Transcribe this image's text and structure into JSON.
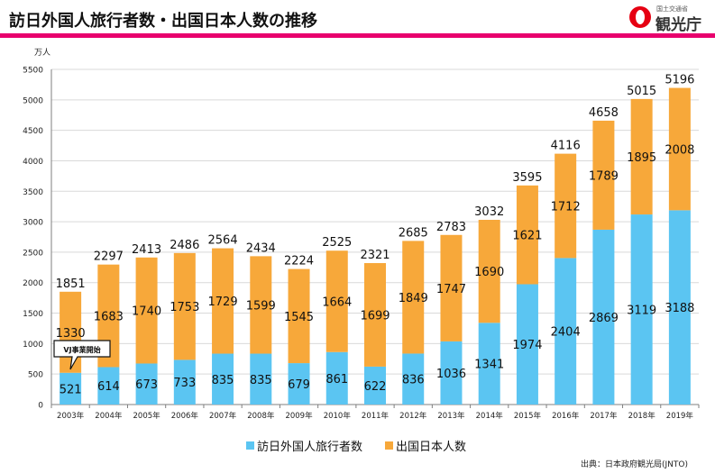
{
  "page": {
    "title": "訪日外国人旅行者数・出国日本人数の推移",
    "logo_small": "国土交通省",
    "logo_text": "観光庁",
    "source": "出典：日本政府観光局(JNTO)"
  },
  "colors": {
    "title_rule": "#e8006d",
    "inbound": "#5bc5f2",
    "outbound": "#f7a83a",
    "grid": "#d9d9d9"
  },
  "chart_data": {
    "type": "bar",
    "stacked": true,
    "title": "",
    "ylabel": "万人",
    "ylim": [
      0,
      5500
    ],
    "yticks": [
      0,
      500,
      1000,
      1500,
      2000,
      2500,
      3000,
      3500,
      4000,
      4500,
      5000,
      5500
    ],
    "grid": true,
    "legend": "bottom",
    "categories": [
      "2003年",
      "2004年",
      "2005年",
      "2006年",
      "2007年",
      "2008年",
      "2009年",
      "2010年",
      "2011年",
      "2012年",
      "2013年",
      "2014年",
      "2015年",
      "2016年",
      "2017年",
      "2018年",
      "2019年"
    ],
    "series": [
      {
        "name": "訪日外国人旅行者数",
        "values": [
          521,
          614,
          673,
          733,
          835,
          835,
          679,
          861,
          622,
          836,
          1036,
          1341,
          1974,
          2404,
          2869,
          3119,
          3188
        ]
      },
      {
        "name": "出国日本人数",
        "values": [
          1330,
          1683,
          1740,
          1753,
          1729,
          1599,
          1545,
          1664,
          1699,
          1849,
          1747,
          1690,
          1621,
          1712,
          1789,
          1895,
          2008
        ]
      }
    ],
    "totals": [
      1851,
      2297,
      2413,
      2486,
      2564,
      2434,
      2224,
      2525,
      2321,
      2685,
      2783,
      3032,
      3595,
      4116,
      4658,
      5015,
      5196
    ],
    "annotation": "VJ事業開始"
  }
}
